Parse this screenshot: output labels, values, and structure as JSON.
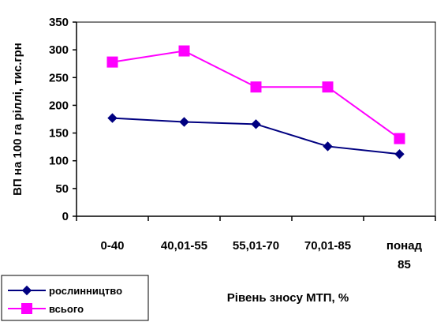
{
  "chart_data": {
    "type": "line",
    "title": "",
    "xlabel": "Рівень зносу МТП, %",
    "ylabel": "ВП на 100 га ріллі, тис.грн",
    "categories": [
      [
        "0-40"
      ],
      [
        "40,01-55"
      ],
      [
        "55,01-70"
      ],
      [
        "70,01-85"
      ],
      [
        "понад",
        "85"
      ]
    ],
    "ylim": [
      0,
      350
    ],
    "yticks": [
      0,
      50,
      100,
      150,
      200,
      250,
      300,
      350
    ],
    "grid": false,
    "legend_position": "bottom-left",
    "series": [
      {
        "name": "рослинництво",
        "values": [
          177,
          170,
          166,
          126,
          112
        ],
        "color": "#000080",
        "marker": "diamond"
      },
      {
        "name": "всього",
        "values": [
          278,
          298,
          233,
          233,
          140
        ],
        "color": "#ff00ff",
        "marker": "square"
      }
    ]
  }
}
